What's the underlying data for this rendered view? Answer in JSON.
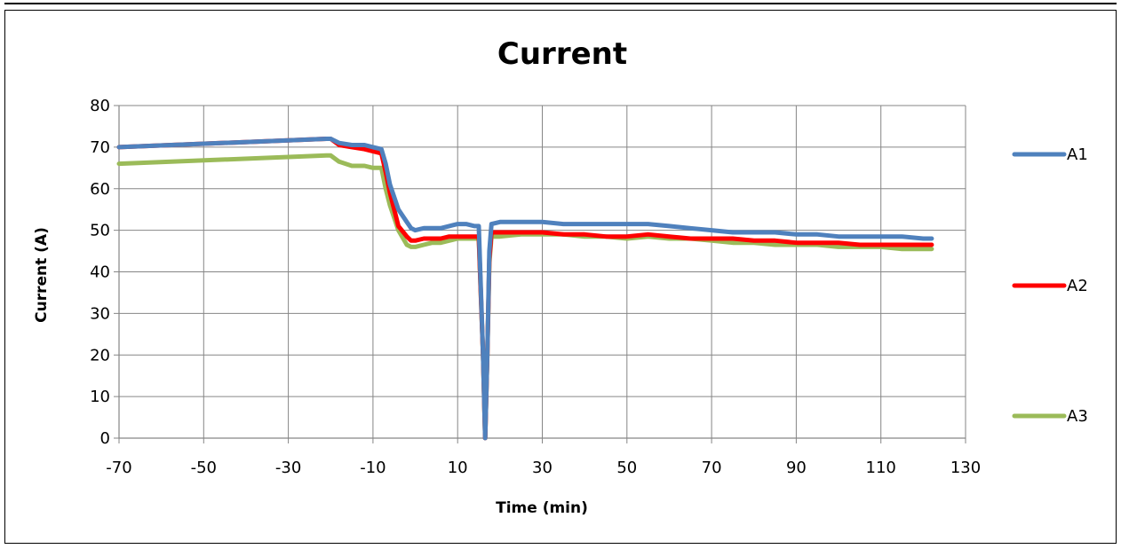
{
  "chart_data": {
    "type": "line",
    "title": "Current",
    "xlabel": "Time (min)",
    "ylabel": "Current (A)",
    "xlim": [
      -70,
      130
    ],
    "ylim": [
      0,
      80
    ],
    "x_ticks": [
      -70,
      -50,
      -30,
      -10,
      10,
      30,
      50,
      70,
      90,
      110,
      130
    ],
    "y_ticks": [
      0,
      10,
      20,
      30,
      40,
      50,
      60,
      70,
      80
    ],
    "grid": true,
    "legend_position": "right",
    "series": [
      {
        "name": "A1",
        "color": "#4F81BD",
        "x": [
          -70,
          -21,
          -20,
          -18,
          -15,
          -12,
          -10,
          -8,
          -7,
          -6,
          -4,
          -2,
          -1,
          0,
          2,
          4,
          6,
          8,
          10,
          12,
          14,
          15,
          16,
          16.5,
          17,
          17.5,
          18,
          20,
          25,
          30,
          35,
          40,
          45,
          50,
          55,
          60,
          65,
          70,
          75,
          80,
          85,
          90,
          95,
          100,
          105,
          110,
          115,
          120,
          122
        ],
        "y": [
          70,
          72,
          72,
          71,
          70.5,
          70.5,
          70,
          69.5,
          66,
          61,
          55,
          52,
          50.5,
          50,
          50.5,
          50.5,
          50.5,
          51,
          51.5,
          51.5,
          51,
          51,
          20,
          0,
          20,
          45,
          51.5,
          52,
          52,
          52,
          51.5,
          51.5,
          51.5,
          51.5,
          51.5,
          51,
          50.5,
          50,
          49.5,
          49.5,
          49.5,
          49,
          49,
          48.5,
          48.5,
          48.5,
          48.5,
          48,
          48
        ]
      },
      {
        "name": "A2",
        "color": "#FF0000",
        "x": [
          -70,
          -21,
          -20,
          -18,
          -15,
          -12,
          -10,
          -8,
          -7,
          -6,
          -4,
          -2,
          -1,
          0,
          2,
          4,
          6,
          8,
          10,
          12,
          14,
          15,
          16,
          16.5,
          17,
          17.5,
          18,
          20,
          25,
          30,
          35,
          40,
          45,
          50,
          55,
          60,
          65,
          70,
          75,
          80,
          85,
          90,
          95,
          100,
          105,
          110,
          115,
          120,
          122
        ],
        "y": [
          70,
          72,
          72,
          70.5,
          70,
          69.5,
          69,
          68.5,
          64,
          59,
          51,
          48.5,
          47.5,
          47.5,
          48,
          48,
          48,
          48.5,
          48.5,
          48.5,
          48.5,
          48.5,
          20,
          0,
          20,
          43,
          49.5,
          49.5,
          49.5,
          49.5,
          49,
          49,
          48.5,
          48.5,
          49,
          48.5,
          48,
          48,
          48,
          47.5,
          47.5,
          47,
          47,
          47,
          46.5,
          46.5,
          46.5,
          46.5,
          46.5
        ]
      },
      {
        "name": "A3",
        "color": "#9BBB59",
        "x": [
          -70,
          -21,
          -20,
          -18,
          -15,
          -12,
          -10,
          -8,
          -7,
          -6,
          -4,
          -2,
          -1,
          0,
          2,
          4,
          6,
          8,
          10,
          12,
          14,
          15,
          16,
          16.5,
          17,
          17.5,
          18,
          20,
          25,
          30,
          35,
          40,
          45,
          50,
          55,
          60,
          65,
          70,
          75,
          80,
          85,
          90,
          95,
          100,
          105,
          110,
          115,
          120,
          122
        ],
        "y": [
          66,
          68,
          68,
          66.5,
          65.5,
          65.5,
          65,
          65,
          60,
          56,
          50,
          46.5,
          46,
          46,
          46.5,
          47,
          47,
          47.5,
          48,
          48,
          48,
          48,
          20,
          0,
          20,
          42,
          48.5,
          48.5,
          49,
          49,
          49,
          48.5,
          48.5,
          48,
          48.5,
          48,
          48,
          47.5,
          47,
          47,
          46.5,
          46.5,
          46.5,
          46,
          46,
          46,
          45.5,
          45.5,
          45.5
        ]
      }
    ]
  }
}
